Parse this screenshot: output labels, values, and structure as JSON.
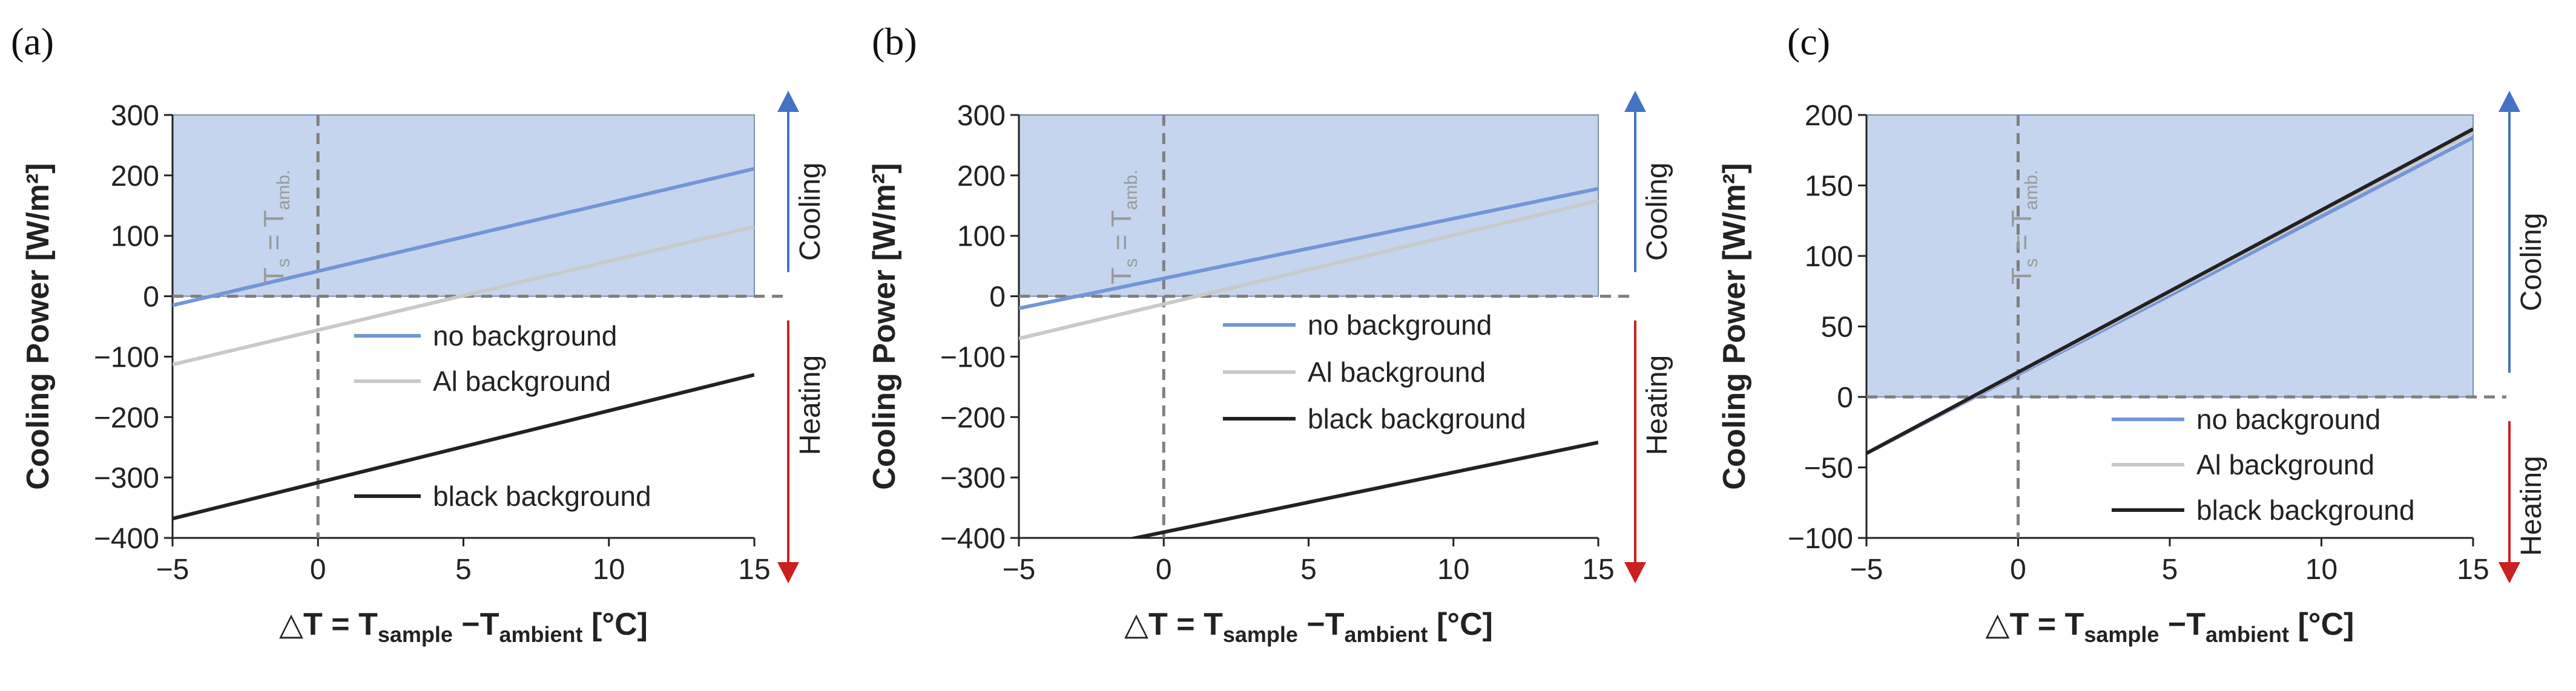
{
  "colors": {
    "fill": "#c5d5ee",
    "blue": "#7396d6",
    "gray": "#c9c9c9",
    "black": "#222222",
    "up_arrow": "#4472c4",
    "down_arrow": "#cc1f1f",
    "dashed": "#7f7f7f",
    "tick": "#222222"
  },
  "chart_data": [
    {
      "type": "line",
      "panel": "(a)",
      "ylabel": "Cooling Power [W/m²]",
      "xlabel": {
        "a": "△T = T",
        "sub1": "sample",
        "b": " −T",
        "sub2": "ambient",
        "c": " [°C]"
      },
      "xlim": [
        -5,
        15
      ],
      "ylim": [
        -400,
        300
      ],
      "xticks": [
        -5,
        0,
        5,
        10,
        15
      ],
      "yticks": [
        -400,
        -300,
        -200,
        -100,
        0,
        100,
        200,
        300
      ],
      "cooling_region": "y > 0 shaded",
      "vline_label": {
        "main": "T",
        "sub1": "s",
        "mid": " = T",
        "sub2": "amb."
      },
      "arrow_up_label": "Cooling",
      "arrow_down_label": "Heating",
      "series": [
        {
          "name": "no background",
          "color": "blue",
          "x": [
            -5,
            15
          ],
          "y": [
            -15,
            211
          ]
        },
        {
          "name": "Al background",
          "color": "gray",
          "x": [
            -5,
            15
          ],
          "y": [
            -113,
            115
          ]
        },
        {
          "name": "black background",
          "color": "black",
          "x": [
            -5,
            15
          ],
          "y": [
            -368,
            -130
          ]
        }
      ],
      "legend": [
        {
          "label": "no background",
          "color": "blue"
        },
        {
          "label": "Al background",
          "color": "gray"
        },
        {
          "label": "black background",
          "color": "black"
        }
      ]
    },
    {
      "type": "line",
      "panel": "(b)",
      "ylabel": "Cooling Power [W/m²]",
      "xlabel": {
        "a": "△T = T",
        "sub1": "sample",
        "b": " −T",
        "sub2": "ambient",
        "c": " [°C]"
      },
      "xlim": [
        -5,
        15
      ],
      "ylim": [
        -400,
        300
      ],
      "xticks": [
        -5,
        0,
        5,
        10,
        15
      ],
      "yticks": [
        -400,
        -300,
        -200,
        -100,
        0,
        100,
        200,
        300
      ],
      "cooling_region": "y > 0 shaded",
      "vline_label": {
        "main": "T",
        "sub1": "s",
        "mid": " = T",
        "sub2": "amb."
      },
      "arrow_up_label": "Cooling",
      "arrow_down_label": "Heating",
      "series": [
        {
          "name": "no background",
          "color": "blue",
          "x": [
            -5,
            15
          ],
          "y": [
            -20,
            178
          ]
        },
        {
          "name": "Al background",
          "color": "gray",
          "x": [
            -5,
            15
          ],
          "y": [
            -70,
            158
          ]
        },
        {
          "name": "black background",
          "color": "black",
          "x": [
            -5,
            15
          ],
          "y": [
            -440,
            -242
          ]
        }
      ],
      "legend": [
        {
          "label": "no background",
          "color": "blue"
        },
        {
          "label": "Al background",
          "color": "gray"
        },
        {
          "label": "black background",
          "color": "black"
        }
      ]
    },
    {
      "type": "line",
      "panel": "(c)",
      "ylabel": "Cooling Power [W/m²]",
      "xlabel": {
        "a": "△T = T",
        "sub1": "sample",
        "b": " −T",
        "sub2": "ambient",
        "c": " [°C]"
      },
      "xlim": [
        -5,
        15
      ],
      "ylim": [
        -100,
        200
      ],
      "xticks": [
        -5,
        0,
        5,
        10,
        15
      ],
      "yticks": [
        -100,
        -50,
        0,
        50,
        100,
        150,
        200
      ],
      "cooling_region": "y > 0 shaded",
      "vline_label": {
        "main": "T",
        "sub1": "s",
        "mid": " = T",
        "sub2": "amb."
      },
      "arrow_up_label": "Cooling",
      "arrow_down_label": "Heating",
      "series": [
        {
          "name": "no background",
          "color": "blue",
          "x": [
            -5,
            15
          ],
          "y": [
            -40,
            184
          ]
        },
        {
          "name": "Al background",
          "color": "gray",
          "x": [
            -5,
            15
          ],
          "y": [
            -40,
            188
          ]
        },
        {
          "name": "black background",
          "color": "black",
          "x": [
            -5,
            15
          ],
          "y": [
            -40,
            190
          ]
        }
      ],
      "legend": [
        {
          "label": "no background",
          "color": "blue"
        },
        {
          "label": "Al background",
          "color": "gray"
        },
        {
          "label": "black background",
          "color": "black"
        }
      ]
    }
  ]
}
